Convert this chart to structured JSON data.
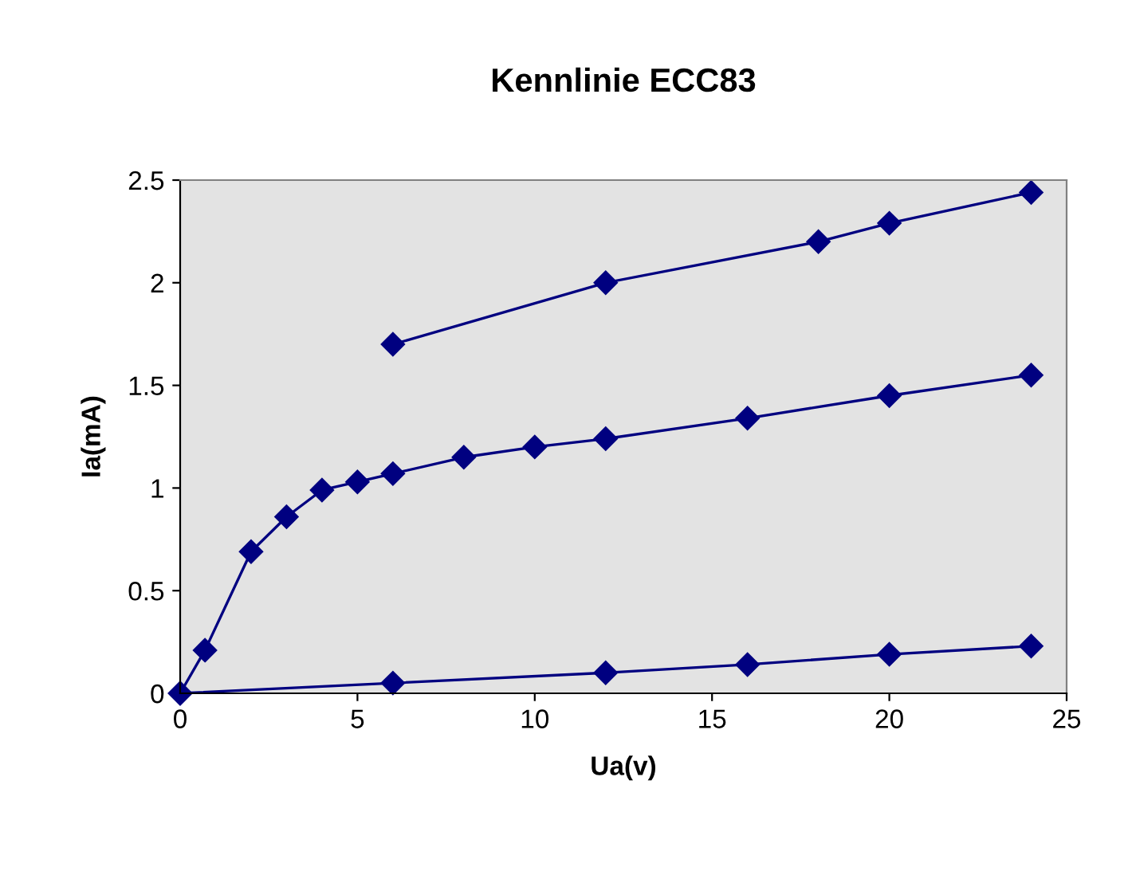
{
  "chart_data": {
    "type": "line",
    "title": "Kennlinie ECC83",
    "xlabel": "Ua(v)",
    "ylabel": "Ia(mA)",
    "xlim": [
      0,
      25
    ],
    "xticks": [
      0,
      5,
      10,
      15,
      20,
      25
    ],
    "ylim": [
      0,
      2.5
    ],
    "yticks": [
      0,
      0.5,
      1,
      1.5,
      2,
      2.5
    ],
    "grid": false,
    "legend": false,
    "marker": "diamond",
    "line_style": "solid",
    "series": [
      {
        "color": "#000080",
        "x": [
          6,
          12,
          18,
          20,
          24
        ],
        "values": [
          1.7,
          2.0,
          2.2,
          2.29,
          2.44
        ]
      },
      {
        "color": "#000080",
        "x": [
          0,
          0.7,
          2,
          3,
          4,
          5,
          6,
          8,
          10,
          12,
          16,
          20,
          24
        ],
        "values": [
          0,
          0.21,
          0.69,
          0.86,
          0.99,
          1.03,
          1.07,
          1.15,
          1.2,
          1.24,
          1.34,
          1.45,
          1.55
        ]
      },
      {
        "color": "#000080",
        "x": [
          0,
          6,
          12,
          16,
          20,
          24
        ],
        "values": [
          0,
          0.05,
          0.1,
          0.14,
          0.19,
          0.23
        ]
      }
    ]
  }
}
